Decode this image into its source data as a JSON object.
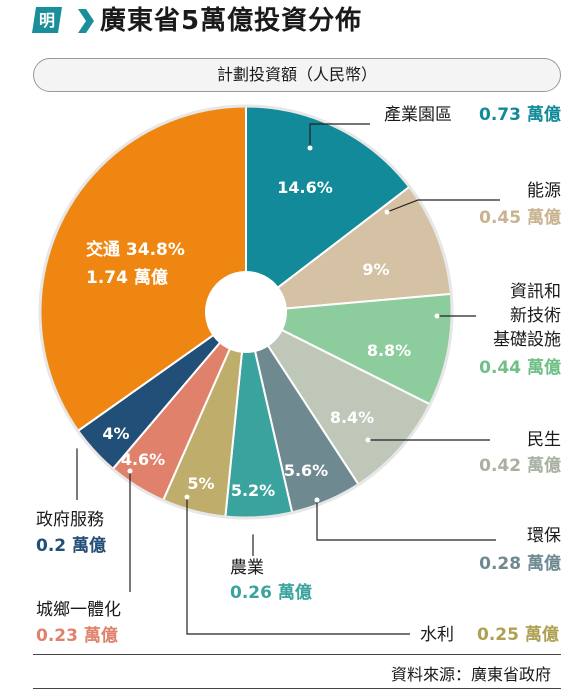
{
  "header": {
    "logo_char": "明",
    "title": "廣東省5萬億投資分佈"
  },
  "subtitle": "計劃投資額（人民幣）",
  "source": "資料來源：廣東省政府",
  "colors": {
    "logo_bg": "#1a8f9b",
    "title_bar": "#1a8f9b"
  },
  "chart_data": {
    "type": "pie",
    "donut": true,
    "unit": "萬億",
    "slices": [
      {
        "name": "產業園區",
        "percent": 14.6,
        "value": 0.73,
        "color": "#128a9a",
        "label_color": "#128a9a",
        "inside_label": "14.6%",
        "value_label": "0.73 萬億"
      },
      {
        "name": "能源",
        "percent": 9,
        "value": 0.45,
        "color": "#d5c1a4",
        "label_color": "#c8b290",
        "inside_label": "9%",
        "value_label": "0.45 萬億"
      },
      {
        "name": "資訊和新技術基礎設施",
        "name_lines": [
          "資訊和",
          "新技術",
          "基礎設施"
        ],
        "percent": 8.8,
        "value": 0.44,
        "color": "#8dcc9c",
        "label_color": "#6fbf86",
        "inside_label": "8.8%",
        "value_label": "0.44 萬億"
      },
      {
        "name": "民生",
        "percent": 8.4,
        "value": 0.42,
        "color": "#bfc7b9",
        "label_color": "#a9b0a2",
        "inside_label": "8.4%",
        "value_label": "0.42 萬億"
      },
      {
        "name": "環保",
        "percent": 5.6,
        "value": 0.28,
        "color": "#6f8990",
        "label_color": "#6f8990",
        "inside_label": "5.6%",
        "value_label": "0.28 萬億"
      },
      {
        "name": "農業",
        "percent": 5.2,
        "value": 0.26,
        "color": "#3aa39e",
        "label_color": "#3aa39e",
        "inside_label": "5.2%",
        "value_label": "0.26 萬億"
      },
      {
        "name": "水利",
        "percent": 5,
        "value": 0.25,
        "color": "#bfad6c",
        "label_color": "#b0a054",
        "inside_label": "5%",
        "value_label": "0.25 萬億"
      },
      {
        "name": "城鄉一體化",
        "percent": 4.6,
        "value": 0.23,
        "color": "#e0826b",
        "label_color": "#e0826b",
        "inside_label": "4.6%",
        "value_label": "0.23 萬億"
      },
      {
        "name": "政府服務",
        "percent": 4,
        "value": 0.2,
        "color": "#224f77",
        "label_color": "#224f77",
        "inside_label": "4%",
        "value_label": "0.2 萬億"
      },
      {
        "name": "交通",
        "percent": 34.8,
        "value": 1.74,
        "color": "#ef8612",
        "label_color": "#ffffff",
        "inside_label": "交通 34.8%",
        "inside_label2": "1.74 萬億"
      }
    ]
  }
}
